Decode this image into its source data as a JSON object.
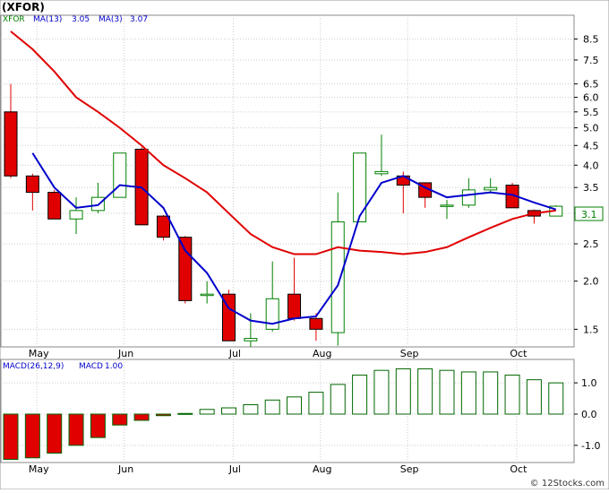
{
  "title": "(XFOR)",
  "watermark": "© 12Stocks.com",
  "colors": {
    "up": "#008000",
    "up_fill": "#ffffff",
    "down": "#e00000",
    "ma13": "#e00000",
    "ma3": "#0000cc",
    "macd_bar": "#006600",
    "grid": "#cccccc",
    "frame": "#888888",
    "legend": "#0000cc",
    "last_price_box": "#008000"
  },
  "chart_data": [
    {
      "type": "candlestick",
      "title": "(XFOR)",
      "scale": "log",
      "ylim": [
        1.35,
        9.8
      ],
      "grid": true,
      "y_ticks": [
        "1.5",
        "2.0",
        "2.5",
        "3.0",
        "3.5",
        "4.0",
        "4.5",
        "5.0",
        "5.5",
        "6.0",
        "6.5",
        "7.5",
        "8.5"
      ],
      "x_ticks": [
        {
          "label": "May",
          "index": 1.2
        },
        {
          "label": "Jun",
          "index": 5.2
        },
        {
          "label": "Jul",
          "index": 10.2
        },
        {
          "label": "Aug",
          "index": 14.2
        },
        {
          "label": "Sep",
          "index": 18.2
        },
        {
          "label": "Oct",
          "index": 23.2
        }
      ],
      "legend": [
        {
          "ticker": "XFOR"
        },
        {
          "name": "MA(13)",
          "value": "3.05"
        },
        {
          "name": "MA(3)",
          "value": "3.07"
        }
      ],
      "last_price_label": "3.1",
      "candles": [
        {
          "open": 5.5,
          "high": 6.5,
          "low": 3.7,
          "close": 3.75
        },
        {
          "open": 3.75,
          "high": 3.8,
          "low": 3.05,
          "close": 3.4
        },
        {
          "open": 3.4,
          "high": 3.45,
          "low": 2.9,
          "close": 2.9
        },
        {
          "open": 2.9,
          "high": 3.3,
          "low": 2.65,
          "close": 3.05
        },
        {
          "open": 3.05,
          "high": 3.6,
          "low": 3.0,
          "close": 3.3
        },
        {
          "open": 3.3,
          "high": 4.3,
          "low": 3.3,
          "close": 4.3
        },
        {
          "open": 4.4,
          "high": 4.45,
          "low": 2.8,
          "close": 2.8
        },
        {
          "open": 2.95,
          "high": 2.97,
          "low": 2.55,
          "close": 2.6
        },
        {
          "open": 2.6,
          "high": 2.62,
          "low": 1.75,
          "close": 1.78
        },
        {
          "open": 1.85,
          "high": 2.0,
          "low": 1.75,
          "close": 1.85
        },
        {
          "open": 1.85,
          "high": 1.9,
          "low": 1.4,
          "close": 1.4
        },
        {
          "open": 1.4,
          "high": 1.65,
          "low": 1.35,
          "close": 1.42
        },
        {
          "open": 1.5,
          "high": 2.25,
          "low": 1.48,
          "close": 1.8
        },
        {
          "open": 1.85,
          "high": 2.3,
          "low": 1.58,
          "close": 1.6
        },
        {
          "open": 1.6,
          "high": 1.65,
          "low": 1.4,
          "close": 1.5
        },
        {
          "open": 1.47,
          "high": 3.4,
          "low": 1.36,
          "close": 2.85
        },
        {
          "open": 2.85,
          "high": 4.3,
          "low": 2.85,
          "close": 4.3
        },
        {
          "open": 3.8,
          "high": 4.8,
          "low": 3.75,
          "close": 3.85
        },
        {
          "open": 3.75,
          "high": 3.85,
          "low": 3.0,
          "close": 3.55
        },
        {
          "open": 3.6,
          "high": 3.6,
          "low": 3.1,
          "close": 3.3
        },
        {
          "open": 3.15,
          "high": 3.25,
          "low": 2.9,
          "close": 3.15
        },
        {
          "open": 3.15,
          "high": 3.7,
          "low": 3.1,
          "close": 3.45
        },
        {
          "open": 3.45,
          "high": 3.7,
          "low": 3.4,
          "close": 3.5
        },
        {
          "open": 3.55,
          "high": 3.6,
          "low": 3.1,
          "close": 3.1
        },
        {
          "open": 3.05,
          "high": 3.07,
          "low": 2.82,
          "close": 2.95
        },
        {
          "open": 2.95,
          "high": 3.15,
          "low": 2.95,
          "close": 3.13
        }
      ],
      "series": [
        {
          "name": "MA(13)",
          "values": [
            8.9,
            8.0,
            7.0,
            6.0,
            5.5,
            5.0,
            4.5,
            4.0,
            3.7,
            3.4,
            3.0,
            2.65,
            2.45,
            2.35,
            2.35,
            2.45,
            2.4,
            2.38,
            2.35,
            2.38,
            2.45,
            2.6,
            2.75,
            2.9,
            3.0,
            3.05
          ]
        },
        {
          "name": "MA(3)",
          "values": [
            null,
            4.3,
            3.5,
            3.1,
            3.15,
            3.55,
            3.5,
            3.1,
            2.4,
            2.1,
            1.7,
            1.58,
            1.55,
            1.6,
            1.62,
            1.95,
            2.95,
            3.6,
            3.75,
            3.5,
            3.3,
            3.35,
            3.4,
            3.35,
            3.2,
            3.07
          ]
        }
      ]
    },
    {
      "type": "bar",
      "title": "",
      "legend": [
        {
          "name": "MACD(26,12,9)"
        },
        {
          "name": "MACD",
          "value": "1.00"
        }
      ],
      "ylim": [
        -1.55,
        1.75
      ],
      "y_ticks": [
        "1.0",
        "0.0",
        "-1.0"
      ],
      "values": [
        -1.45,
        -1.4,
        -1.25,
        -1.0,
        -0.75,
        -0.35,
        -0.2,
        -0.05,
        0.02,
        0.15,
        0.2,
        0.3,
        0.45,
        0.55,
        0.7,
        0.95,
        1.25,
        1.4,
        1.45,
        1.45,
        1.4,
        1.35,
        1.35,
        1.25,
        1.1,
        1.0
      ]
    }
  ]
}
